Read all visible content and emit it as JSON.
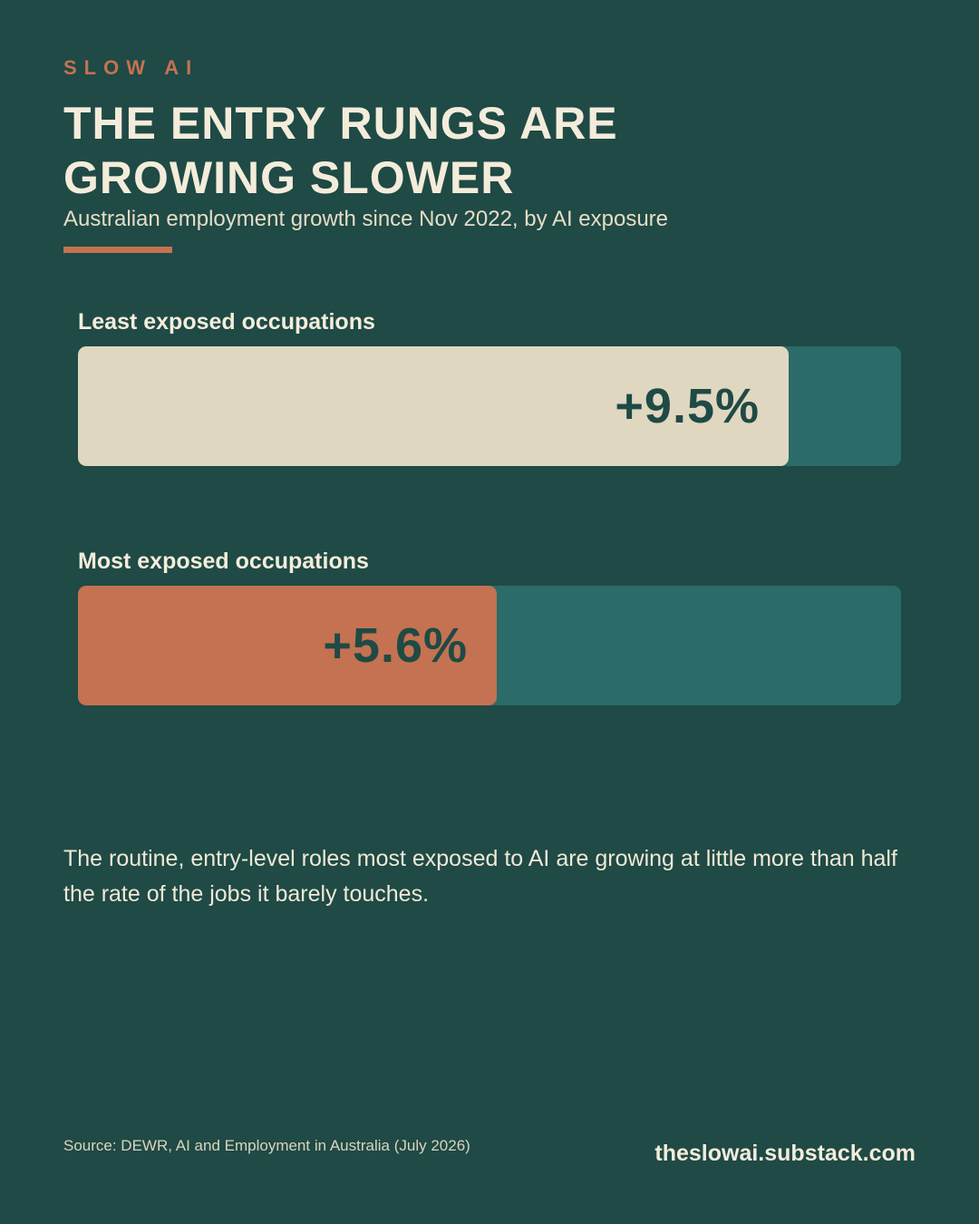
{
  "brand": "SLOW AI",
  "header": {
    "title": "THE ENTRY RUNGS ARE\nGROWING SLOWER",
    "subtitle": "Australian employment growth since Nov 2022, by AI exposure"
  },
  "chart_data": {
    "type": "bar",
    "orientation": "horizontal",
    "unit": "%",
    "xlim": [
      0,
      11
    ],
    "categories": [
      "Least exposed occupations",
      "Most exposed occupations"
    ],
    "values": [
      9.5,
      5.6
    ],
    "value_labels": [
      "+9.5%",
      "+5.6%"
    ],
    "colors": [
      "#e0d7c1",
      "#c47251"
    ],
    "track_color": "#2b6b6a",
    "grid": false,
    "legend": "none"
  },
  "body_text": "The routine, entry-level roles most exposed to AI are growing at little more than half the rate of the jobs it barely touches.",
  "footer": {
    "source": "Source: DEWR, AI and Employment in Australia (July 2026)",
    "site": "theslowai.substack.com"
  }
}
